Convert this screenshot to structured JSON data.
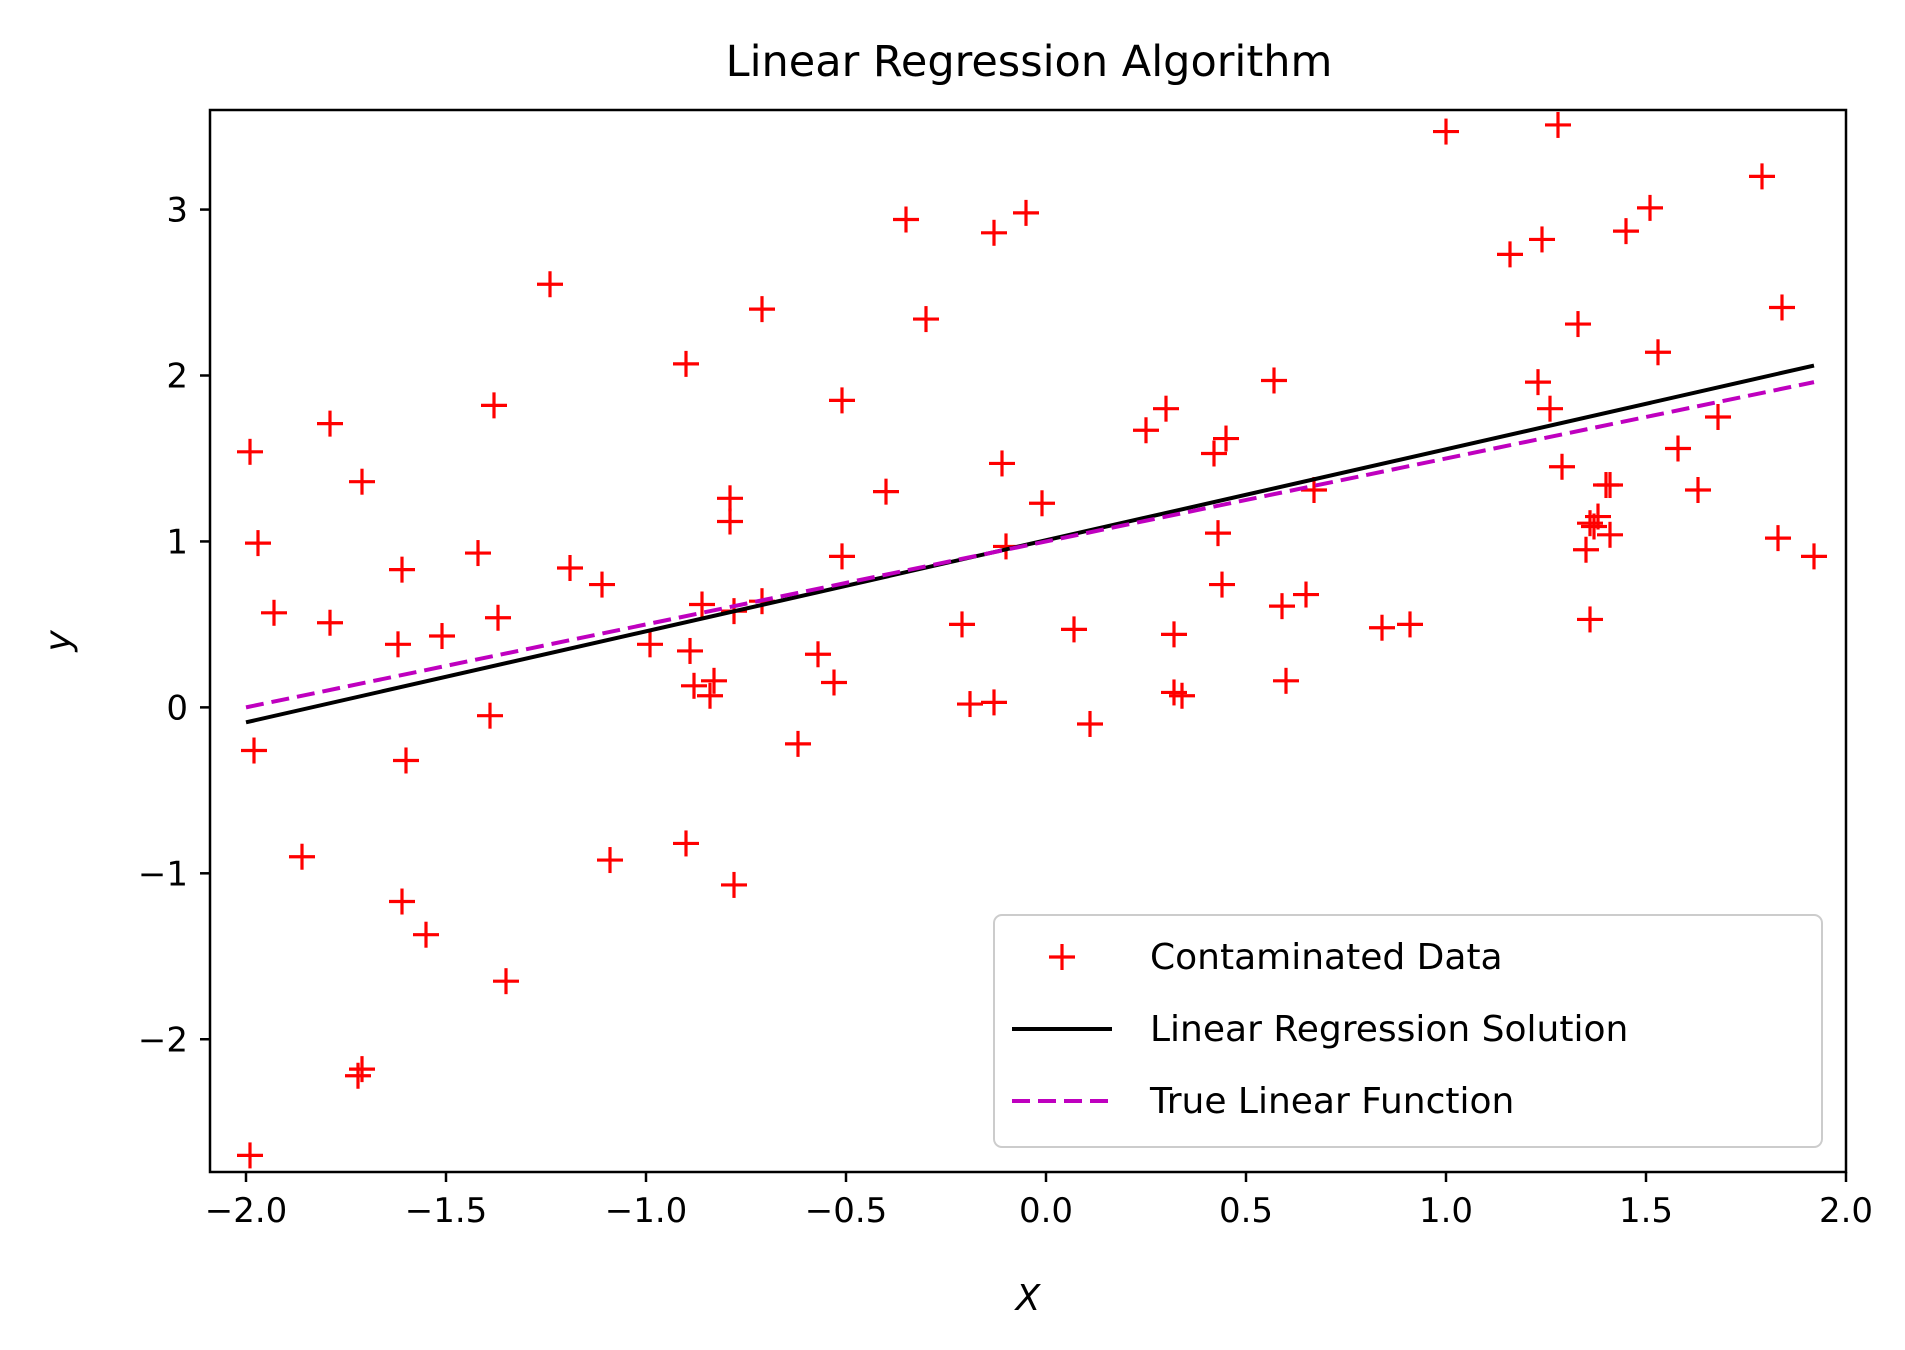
{
  "chart_data": {
    "type": "scatter",
    "title": "Linear Regression Algorithm",
    "xlabel": "X",
    "ylabel": "y",
    "xlim": [
      -2.09,
      2.0
    ],
    "ylim": [
      -2.8,
      3.6
    ],
    "xticks": [
      -2.0,
      -1.5,
      -1.0,
      -0.5,
      0.0,
      0.5,
      1.0,
      1.5,
      2.0
    ],
    "xtick_labels": [
      "−2.0",
      "−1.5",
      "−1.0",
      "−0.5",
      "0.0",
      "0.5",
      "1.0",
      "1.5",
      "2.0"
    ],
    "yticks": [
      -2,
      -1,
      0,
      1,
      2,
      3
    ],
    "ytick_labels": [
      "−2",
      "−1",
      "0",
      "1",
      "2",
      "3"
    ],
    "grid": false,
    "legend_position": "lower-right",
    "series": [
      {
        "name": "Contaminated Data",
        "kind": "scatter",
        "marker": "plus",
        "color": "#ff0000",
        "points": [
          [
            -1.99,
            1.54
          ],
          [
            -1.97,
            0.99
          ],
          [
            -1.98,
            -0.26
          ],
          [
            -1.99,
            -2.7
          ],
          [
            -1.93,
            0.57
          ],
          [
            -1.86,
            -0.9
          ],
          [
            -1.79,
            1.71
          ],
          [
            -1.79,
            0.51
          ],
          [
            -1.71,
            1.36
          ],
          [
            -1.71,
            -2.18
          ],
          [
            -1.72,
            -2.22
          ],
          [
            -1.61,
            0.83
          ],
          [
            -1.62,
            0.38
          ],
          [
            -1.6,
            -0.32
          ],
          [
            -1.61,
            -1.17
          ],
          [
            -1.55,
            -1.37
          ],
          [
            -1.51,
            0.43
          ],
          [
            -1.42,
            0.93
          ],
          [
            -1.38,
            1.82
          ],
          [
            -1.37,
            0.54
          ],
          [
            -1.39,
            -0.05
          ],
          [
            -1.35,
            -1.65
          ],
          [
            -1.24,
            2.55
          ],
          [
            -1.19,
            0.84
          ],
          [
            -1.11,
            0.74
          ],
          [
            -1.09,
            -0.92
          ],
          [
            -0.99,
            0.38
          ],
          [
            -0.9,
            2.07
          ],
          [
            -0.89,
            0.34
          ],
          [
            -0.88,
            0.13
          ],
          [
            -0.9,
            -0.82
          ],
          [
            -0.86,
            0.62
          ],
          [
            -0.84,
            0.07
          ],
          [
            -0.83,
            0.16
          ],
          [
            -0.79,
            1.26
          ],
          [
            -0.79,
            1.12
          ],
          [
            -0.78,
            0.58
          ],
          [
            -0.78,
            -1.07
          ],
          [
            -0.71,
            2.4
          ],
          [
            -0.71,
            0.64
          ],
          [
            -0.62,
            -0.22
          ],
          [
            -0.57,
            0.32
          ],
          [
            -0.53,
            0.15
          ],
          [
            -0.51,
            1.85
          ],
          [
            -0.51,
            0.91
          ],
          [
            -0.4,
            1.3
          ],
          [
            -0.35,
            2.94
          ],
          [
            -0.3,
            2.34
          ],
          [
            -0.21,
            0.5
          ],
          [
            -0.19,
            0.02
          ],
          [
            -0.13,
            2.86
          ],
          [
            -0.13,
            0.03
          ],
          [
            -0.11,
            1.47
          ],
          [
            -0.1,
            0.97
          ],
          [
            -0.05,
            2.98
          ],
          [
            -0.01,
            1.23
          ],
          [
            0.07,
            0.47
          ],
          [
            0.11,
            -0.1
          ],
          [
            0.25,
            1.67
          ],
          [
            0.3,
            1.8
          ],
          [
            0.32,
            0.44
          ],
          [
            0.32,
            0.09
          ],
          [
            0.34,
            0.07
          ],
          [
            0.42,
            1.53
          ],
          [
            0.43,
            1.05
          ],
          [
            0.44,
            0.74
          ],
          [
            0.45,
            1.62
          ],
          [
            0.57,
            1.97
          ],
          [
            0.59,
            0.61
          ],
          [
            0.6,
            0.16
          ],
          [
            0.65,
            0.68
          ],
          [
            0.67,
            1.31
          ],
          [
            0.84,
            0.48
          ],
          [
            0.91,
            0.5
          ],
          [
            1.0,
            3.47
          ],
          [
            1.16,
            2.73
          ],
          [
            1.23,
            1.96
          ],
          [
            1.24,
            2.82
          ],
          [
            1.26,
            1.8
          ],
          [
            1.28,
            3.51
          ],
          [
            1.29,
            1.45
          ],
          [
            1.33,
            2.31
          ],
          [
            1.35,
            0.95
          ],
          [
            1.36,
            1.11
          ],
          [
            1.37,
            1.09
          ],
          [
            1.36,
            0.53
          ],
          [
            1.38,
            1.15
          ],
          [
            1.4,
            1.34
          ],
          [
            1.41,
            1.34
          ],
          [
            1.41,
            1.04
          ],
          [
            1.45,
            2.87
          ],
          [
            1.51,
            3.01
          ],
          [
            1.53,
            2.14
          ],
          [
            1.58,
            1.56
          ],
          [
            1.63,
            1.31
          ],
          [
            1.68,
            1.75
          ],
          [
            1.79,
            3.2
          ],
          [
            1.83,
            1.02
          ],
          [
            1.84,
            2.41
          ],
          [
            1.92,
            0.91
          ]
        ]
      },
      {
        "name": "Linear Regression Solution",
        "kind": "line",
        "style": "solid",
        "color": "#000000",
        "points": [
          [
            -2.0,
            -0.09
          ],
          [
            1.92,
            2.06
          ]
        ]
      },
      {
        "name": "True Linear Function",
        "kind": "line",
        "style": "dashed",
        "color": "#bf00bf",
        "points": [
          [
            -2.0,
            0.0
          ],
          [
            1.92,
            1.96
          ]
        ]
      }
    ]
  }
}
